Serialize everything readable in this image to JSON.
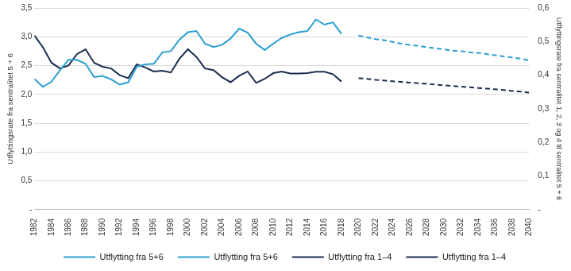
{
  "chart_data": {
    "type": "line",
    "y_label": "Utflyttingsrate fra sentralitet 5 + 6",
    "y2_label": "Utflyttingsrate fra sentralitet 1, 2, 3 og 4 til sentralitet 5 + 6",
    "x": [
      1982,
      1983,
      1984,
      1985,
      1986,
      1987,
      1988,
      1989,
      1990,
      1991,
      1992,
      1993,
      1994,
      1995,
      1996,
      1997,
      1998,
      1999,
      2000,
      2001,
      2002,
      2003,
      2004,
      2005,
      2006,
      2007,
      2008,
      2009,
      2010,
      2011,
      2012,
      2013,
      2014,
      2015,
      2016,
      2017,
      2018,
      2019,
      2020,
      2021,
      2022,
      2023,
      2024,
      2025,
      2026,
      2027,
      2028,
      2029,
      2030,
      2031,
      2032,
      2033,
      2034,
      2035,
      2036,
      2037,
      2038,
      2039,
      2040
    ],
    "xlim": [
      1982,
      2040
    ],
    "xticks": [
      1982,
      1984,
      1986,
      1988,
      1990,
      1992,
      1994,
      1996,
      1998,
      2000,
      2002,
      2004,
      2006,
      2008,
      2010,
      2012,
      2014,
      2016,
      2018,
      2020,
      2022,
      2024,
      2026,
      2028,
      2030,
      2032,
      2034,
      2036,
      2038,
      2040
    ],
    "ylim": [
      0,
      3.5
    ],
    "yticks": [
      {
        "value": 0,
        "label": "-"
      },
      {
        "value": 0.5,
        "label": "0,5"
      },
      {
        "value": 1,
        "label": "1,0"
      },
      {
        "value": 1.5,
        "label": "1,5"
      },
      {
        "value": 2,
        "label": "2,0"
      },
      {
        "value": 2.5,
        "label": "2,5"
      },
      {
        "value": 3,
        "label": "3,0"
      },
      {
        "value": 3.5,
        "label": "3,5"
      }
    ],
    "y2lim": [
      0,
      0.6
    ],
    "y2ticks": [
      {
        "value": 0,
        "label": "-"
      },
      {
        "value": 0.1,
        "label": "0,1"
      },
      {
        "value": 0.2,
        "label": "0,2"
      },
      {
        "value": 0.3,
        "label": "0,3"
      },
      {
        "value": 0.4,
        "label": "0,4"
      },
      {
        "value": 0.5,
        "label": "0,5"
      },
      {
        "value": 0.6,
        "label": "0,6"
      }
    ],
    "grid": true,
    "legend": "bottom",
    "series": [
      {
        "name": "Utflytting fra 5+6",
        "color": "#2a9fd0",
        "line_style": "solid",
        "values": [
          2.27,
          2.13,
          2.22,
          2.42,
          2.6,
          2.6,
          2.53,
          2.3,
          2.32,
          2.26,
          2.17,
          2.21,
          2.48,
          2.52,
          2.53,
          2.73,
          2.75,
          2.95,
          3.08,
          3.1,
          2.88,
          2.82,
          2.86,
          2.97,
          3.14,
          3.07,
          2.88,
          2.77,
          2.88,
          2.98,
          3.04,
          3.08,
          3.1,
          3.3,
          3.21,
          3.25,
          3.05,
          null,
          null,
          null,
          null,
          null,
          null,
          null,
          null,
          null,
          null,
          null,
          null,
          null,
          null,
          null,
          null,
          null,
          null,
          null,
          null,
          null,
          null
        ]
      },
      {
        "name": "Utflytting fra 5+6",
        "color": "#2a9fd0",
        "line_style": "dashed",
        "values": [
          null,
          null,
          null,
          null,
          null,
          null,
          null,
          null,
          null,
          null,
          null,
          null,
          null,
          null,
          null,
          null,
          null,
          null,
          null,
          null,
          null,
          null,
          null,
          null,
          null,
          null,
          null,
          null,
          null,
          null,
          null,
          null,
          null,
          null,
          null,
          null,
          null,
          null,
          3.02,
          2.99,
          2.96,
          2.94,
          2.91,
          2.88,
          2.86,
          2.84,
          2.82,
          2.8,
          2.78,
          2.76,
          2.75,
          2.73,
          2.72,
          2.7,
          2.68,
          2.66,
          2.64,
          2.62,
          2.59
        ]
      },
      {
        "name": "Utflytting fra 1–4",
        "color": "#1b2d4f",
        "line_style": "solid",
        "axis": "y2",
        "values": [
          0.518,
          0.483,
          0.437,
          0.42,
          0.429,
          0.463,
          0.477,
          0.437,
          0.425,
          0.42,
          0.4,
          0.391,
          0.432,
          0.423,
          0.411,
          0.413,
          0.408,
          0.449,
          0.477,
          0.454,
          0.42,
          0.415,
          0.394,
          0.379,
          0.398,
          0.411,
          0.377,
          0.389,
          0.406,
          0.411,
          0.405,
          0.405,
          0.406,
          0.41,
          0.41,
          0.403,
          0.381,
          null,
          null,
          null,
          null,
          null,
          null,
          null,
          null,
          null,
          null,
          null,
          null,
          null,
          null,
          null,
          null,
          null,
          null,
          null,
          null,
          null,
          null
        ]
      },
      {
        "name": "Utflytting fra 1–4",
        "color": "#1b2d4f",
        "line_style": "dashed",
        "axis": "y2",
        "values": [
          null,
          null,
          null,
          null,
          null,
          null,
          null,
          null,
          null,
          null,
          null,
          null,
          null,
          null,
          null,
          null,
          null,
          null,
          null,
          null,
          null,
          null,
          null,
          null,
          null,
          null,
          null,
          null,
          null,
          null,
          null,
          null,
          null,
          null,
          null,
          null,
          null,
          null,
          0.391,
          0.389,
          0.386,
          0.384,
          0.382,
          0.38,
          0.378,
          0.376,
          0.374,
          0.372,
          0.37,
          0.368,
          0.366,
          0.364,
          0.362,
          0.36,
          0.358,
          0.356,
          0.353,
          0.351,
          0.348
        ]
      }
    ]
  }
}
